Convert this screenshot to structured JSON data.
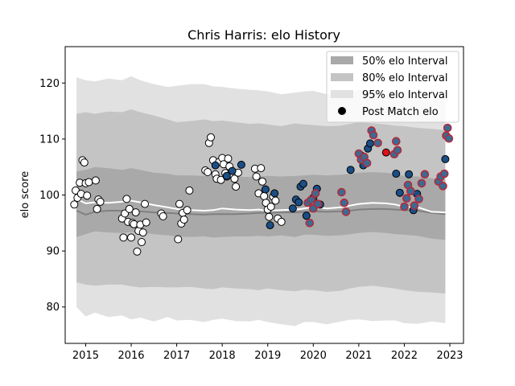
{
  "chart_data": {
    "type": "scatter",
    "title": "Chris Harris: elo History",
    "xlabel": "",
    "ylabel": "elo score",
    "xlim": [
      2014.55,
      2023.3
    ],
    "ylim": [
      73.5,
      126.5
    ],
    "xticks": [
      2015,
      2016,
      2017,
      2018,
      2019,
      2020,
      2021,
      2022,
      2023
    ],
    "yticks": [
      80,
      90,
      100,
      110,
      120
    ],
    "grid": false,
    "legend_position": "top-right",
    "legend": [
      {
        "label": "50% elo Interval",
        "color": "#a9a9a9"
      },
      {
        "label": "80% elo Interval",
        "color": "#c4c4c4"
      },
      {
        "label": "95% elo Interval",
        "color": "#e1e1e1"
      },
      {
        "label": "Post Match elo",
        "color": "#000000"
      }
    ],
    "median_line_color": "#808080",
    "mean_line_color": "#ffffff",
    "intervals": {
      "x": [
        2014.8,
        2015.0,
        2015.2,
        2015.5,
        2015.8,
        2016.0,
        2016.2,
        2016.5,
        2016.8,
        2017.0,
        2017.3,
        2017.6,
        2017.8,
        2018.0,
        2018.3,
        2018.6,
        2018.8,
        2019.0,
        2019.3,
        2019.6,
        2019.8,
        2020.0,
        2020.3,
        2020.6,
        2020.8,
        2021.0,
        2021.3,
        2021.6,
        2021.8,
        2022.0,
        2022.3,
        2022.6,
        2022.9
      ],
      "median": [
        97.2,
        96.5,
        97.0,
        97.2,
        97.2,
        97.3,
        97.1,
        96.9,
        96.8,
        96.7,
        96.6,
        96.5,
        96.6,
        96.6,
        96.6,
        96.7,
        96.8,
        96.8,
        96.9,
        96.9,
        97.0,
        97.1,
        97.0,
        97.1,
        97.2,
        97.4,
        97.5,
        97.5,
        97.4,
        97.3,
        97.2,
        96.8,
        96.6
      ],
      "mean": [
        99.3,
        98.5,
        98.7,
        98.6,
        98.8,
        99.0,
        98.7,
        98.2,
        97.8,
        97.5,
        97.3,
        97.2,
        97.3,
        97.6,
        97.4,
        97.3,
        97.4,
        97.2,
        97.3,
        97.4,
        97.6,
        97.9,
        97.6,
        97.8,
        98.1,
        98.4,
        98.6,
        98.5,
        98.3,
        97.9,
        97.8,
        97.0,
        96.9
      ],
      "p25": [
        92.5,
        93.0,
        93.5,
        93.3,
        93.2,
        93.4,
        93.3,
        93.0,
        92.8,
        92.6,
        92.5,
        92.6,
        92.4,
        92.5,
        92.6,
        92.6,
        92.7,
        92.6,
        92.8,
        92.5,
        92.9,
        92.9,
        92.7,
        92.8,
        93.0,
        93.2,
        93.4,
        93.2,
        93.0,
        92.9,
        92.7,
        92.2,
        92.0
      ],
      "p75": [
        104.2,
        104.5,
        105.0,
        104.8,
        104.5,
        104.8,
        104.5,
        104.0,
        103.8,
        103.5,
        103.5,
        103.4,
        103.3,
        103.4,
        103.3,
        103.2,
        103.3,
        103.4,
        103.3,
        103.4,
        103.5,
        103.6,
        103.5,
        103.6,
        103.8,
        104.0,
        104.1,
        104.0,
        103.7,
        103.4,
        103.3,
        103.0,
        102.8
      ],
      "p10": [
        84.4,
        84.0,
        83.8,
        84.0,
        84.0,
        83.7,
        83.5,
        83.6,
        83.5,
        83.5,
        83.6,
        83.3,
        83.2,
        83.5,
        83.3,
        83.2,
        83.0,
        83.3,
        83.0,
        82.8,
        83.1,
        83.0,
        82.7,
        82.9,
        83.3,
        83.6,
        83.8,
        83.5,
        83.3,
        83.0,
        82.7,
        82.6,
        82.4
      ],
      "p90": [
        114.5,
        114.8,
        114.5,
        114.9,
        114.8,
        115.3,
        114.8,
        114.2,
        113.5,
        113.0,
        113.2,
        113.5,
        113.2,
        113.3,
        113.0,
        112.7,
        112.8,
        112.6,
        112.3,
        112.8,
        112.6,
        112.5,
        112.3,
        112.4,
        112.7,
        113.0,
        112.8,
        112.6,
        112.4,
        112.3,
        112.0,
        111.8,
        111.6
      ],
      "p2_5": [
        80.0,
        78.3,
        79.0,
        78.2,
        78.5,
        77.8,
        78.1,
        77.4,
        78.2,
        77.6,
        77.7,
        77.3,
        77.7,
        77.9,
        77.5,
        77.4,
        77.7,
        77.3,
        76.9,
        76.6,
        77.3,
        77.3,
        76.9,
        77.4,
        77.7,
        77.8,
        77.5,
        77.6,
        77.6,
        77.1,
        77.0,
        77.4,
        77.1
      ],
      "p97_5": [
        121.0,
        120.5,
        120.3,
        120.8,
        120.5,
        121.2,
        120.5,
        119.8,
        119.3,
        119.5,
        119.8,
        119.8,
        119.4,
        119.3,
        119.0,
        118.8,
        118.7,
        118.5,
        118.0,
        118.3,
        118.5,
        118.6,
        118.0,
        118.5,
        118.2,
        118.8,
        118.5,
        118.0,
        118.3,
        118.5,
        117.7,
        117.0,
        117.9
      ]
    },
    "series": [
      {
        "name": "Post Match elo",
        "marker_fill": "#ffffff",
        "x": [
          2014.75,
          2014.78,
          2014.82,
          2014.87,
          2014.9,
          2014.93,
          2014.97,
          2015.0,
          2015.03,
          2015.07,
          2015.22,
          2015.25,
          2015.28,
          2015.32,
          2015.8,
          2015.83,
          2015.86,
          2015.9,
          2015.93,
          2015.96,
          2016.0,
          2016.03,
          2016.06,
          2016.1,
          2016.13,
          2016.16,
          2016.2,
          2016.23,
          2016.26,
          2016.3,
          2016.33,
          2016.66,
          2016.7,
          2017.03,
          2017.06,
          2017.1,
          2017.13,
          2017.16,
          2017.23,
          2017.28,
          2017.63,
          2017.68,
          2017.71,
          2017.75,
          2017.8,
          2017.85,
          2017.88,
          2017.93,
          2017.97,
          2018.0,
          2018.03,
          2018.07,
          2018.1,
          2018.13,
          2018.16,
          2018.2,
          2018.23,
          2018.27,
          2018.3,
          2018.35,
          2018.72,
          2018.75,
          2018.8,
          2018.85,
          2018.88,
          2018.92,
          2018.96,
          2019.0,
          2019.03,
          2019.07,
          2019.12,
          2019.17,
          2019.22,
          2019.3
        ],
        "y": [
          98.3,
          100.8,
          99.5,
          102.2,
          100.2,
          106.2,
          105.8,
          102.1,
          99.9,
          102.3,
          102.6,
          97.5,
          99.2,
          98.8,
          95.8,
          92.4,
          96.7,
          99.3,
          95.2,
          97.5,
          92.4,
          95.0,
          94.8,
          96.9,
          89.9,
          93.6,
          94.7,
          91.6,
          93.3,
          98.4,
          95.1,
          96.7,
          96.2,
          92.1,
          98.4,
          94.9,
          96.8,
          95.6,
          97.3,
          100.8,
          104.4,
          104.1,
          109.3,
          110.3,
          106.2,
          103.7,
          102.9,
          105.9,
          102.7,
          106.6,
          105.5,
          103.9,
          103.3,
          106.5,
          105.1,
          104.0,
          103.6,
          102.9,
          101.5,
          104.0,
          104.7,
          103.3,
          100.3,
          104.8,
          102.4,
          99.8,
          98.6,
          97.4,
          96.1,
          97.9,
          99.7,
          99.0,
          95.8,
          95.2
        ]
      },
      {
        "name": "",
        "marker_fill": "#1a4e85",
        "x": [
          2017.85,
          2018.1,
          2018.22,
          2018.42,
          2018.95,
          2019.05,
          2019.15,
          2019.55,
          2019.62,
          2019.68,
          2019.72,
          2019.78,
          2019.85,
          2020.0,
          2020.08,
          2020.15,
          2020.82,
          2021.05,
          2021.1,
          2021.2,
          2021.25,
          2021.82,
          2021.9,
          2022.1,
          2022.2,
          2022.28,
          2022.9
        ],
        "y": [
          105.3,
          103.4,
          104.3,
          105.4,
          101.0,
          94.6,
          100.3,
          97.6,
          99.2,
          98.7,
          101.5,
          102.0,
          96.3,
          99.5,
          101.1,
          98.3,
          104.5,
          107.1,
          105.3,
          108.3,
          109.2,
          103.8,
          100.4,
          103.7,
          97.3,
          100.2,
          106.4
        ]
      },
      {
        "name": "",
        "marker_fill": "#3b6a93",
        "marker_edge": "#b22b3b",
        "x": [
          2019.88,
          2019.92,
          2019.95,
          2020.0,
          2020.05,
          2020.1,
          2020.62,
          2020.68,
          2020.72,
          2021.0,
          2021.05,
          2021.12,
          2021.18,
          2021.28,
          2021.32,
          2021.42,
          2021.78,
          2021.82,
          2021.85,
          2022.0,
          2022.05,
          2022.08,
          2022.14,
          2022.22,
          2022.32,
          2022.38,
          2022.45,
          2022.75,
          2022.8,
          2022.85,
          2022.88,
          2022.92,
          2022.95,
          2022.98
        ],
        "y": [
          98.6,
          95.0,
          99.1,
          97.6,
          100.3,
          98.4,
          100.5,
          98.6,
          97.0,
          107.4,
          106.3,
          106.8,
          105.7,
          111.5,
          110.7,
          109.3,
          107.3,
          109.6,
          108.0,
          97.9,
          99.4,
          101.8,
          100.7,
          98.1,
          99.3,
          102.1,
          103.7,
          102.4,
          103.3,
          101.6,
          103.8,
          110.6,
          112.0,
          110.1
        ]
      },
      {
        "name": "",
        "marker_fill": "#e0101a",
        "x": [
          2021.6
        ],
        "y": [
          107.6
        ]
      }
    ]
  }
}
